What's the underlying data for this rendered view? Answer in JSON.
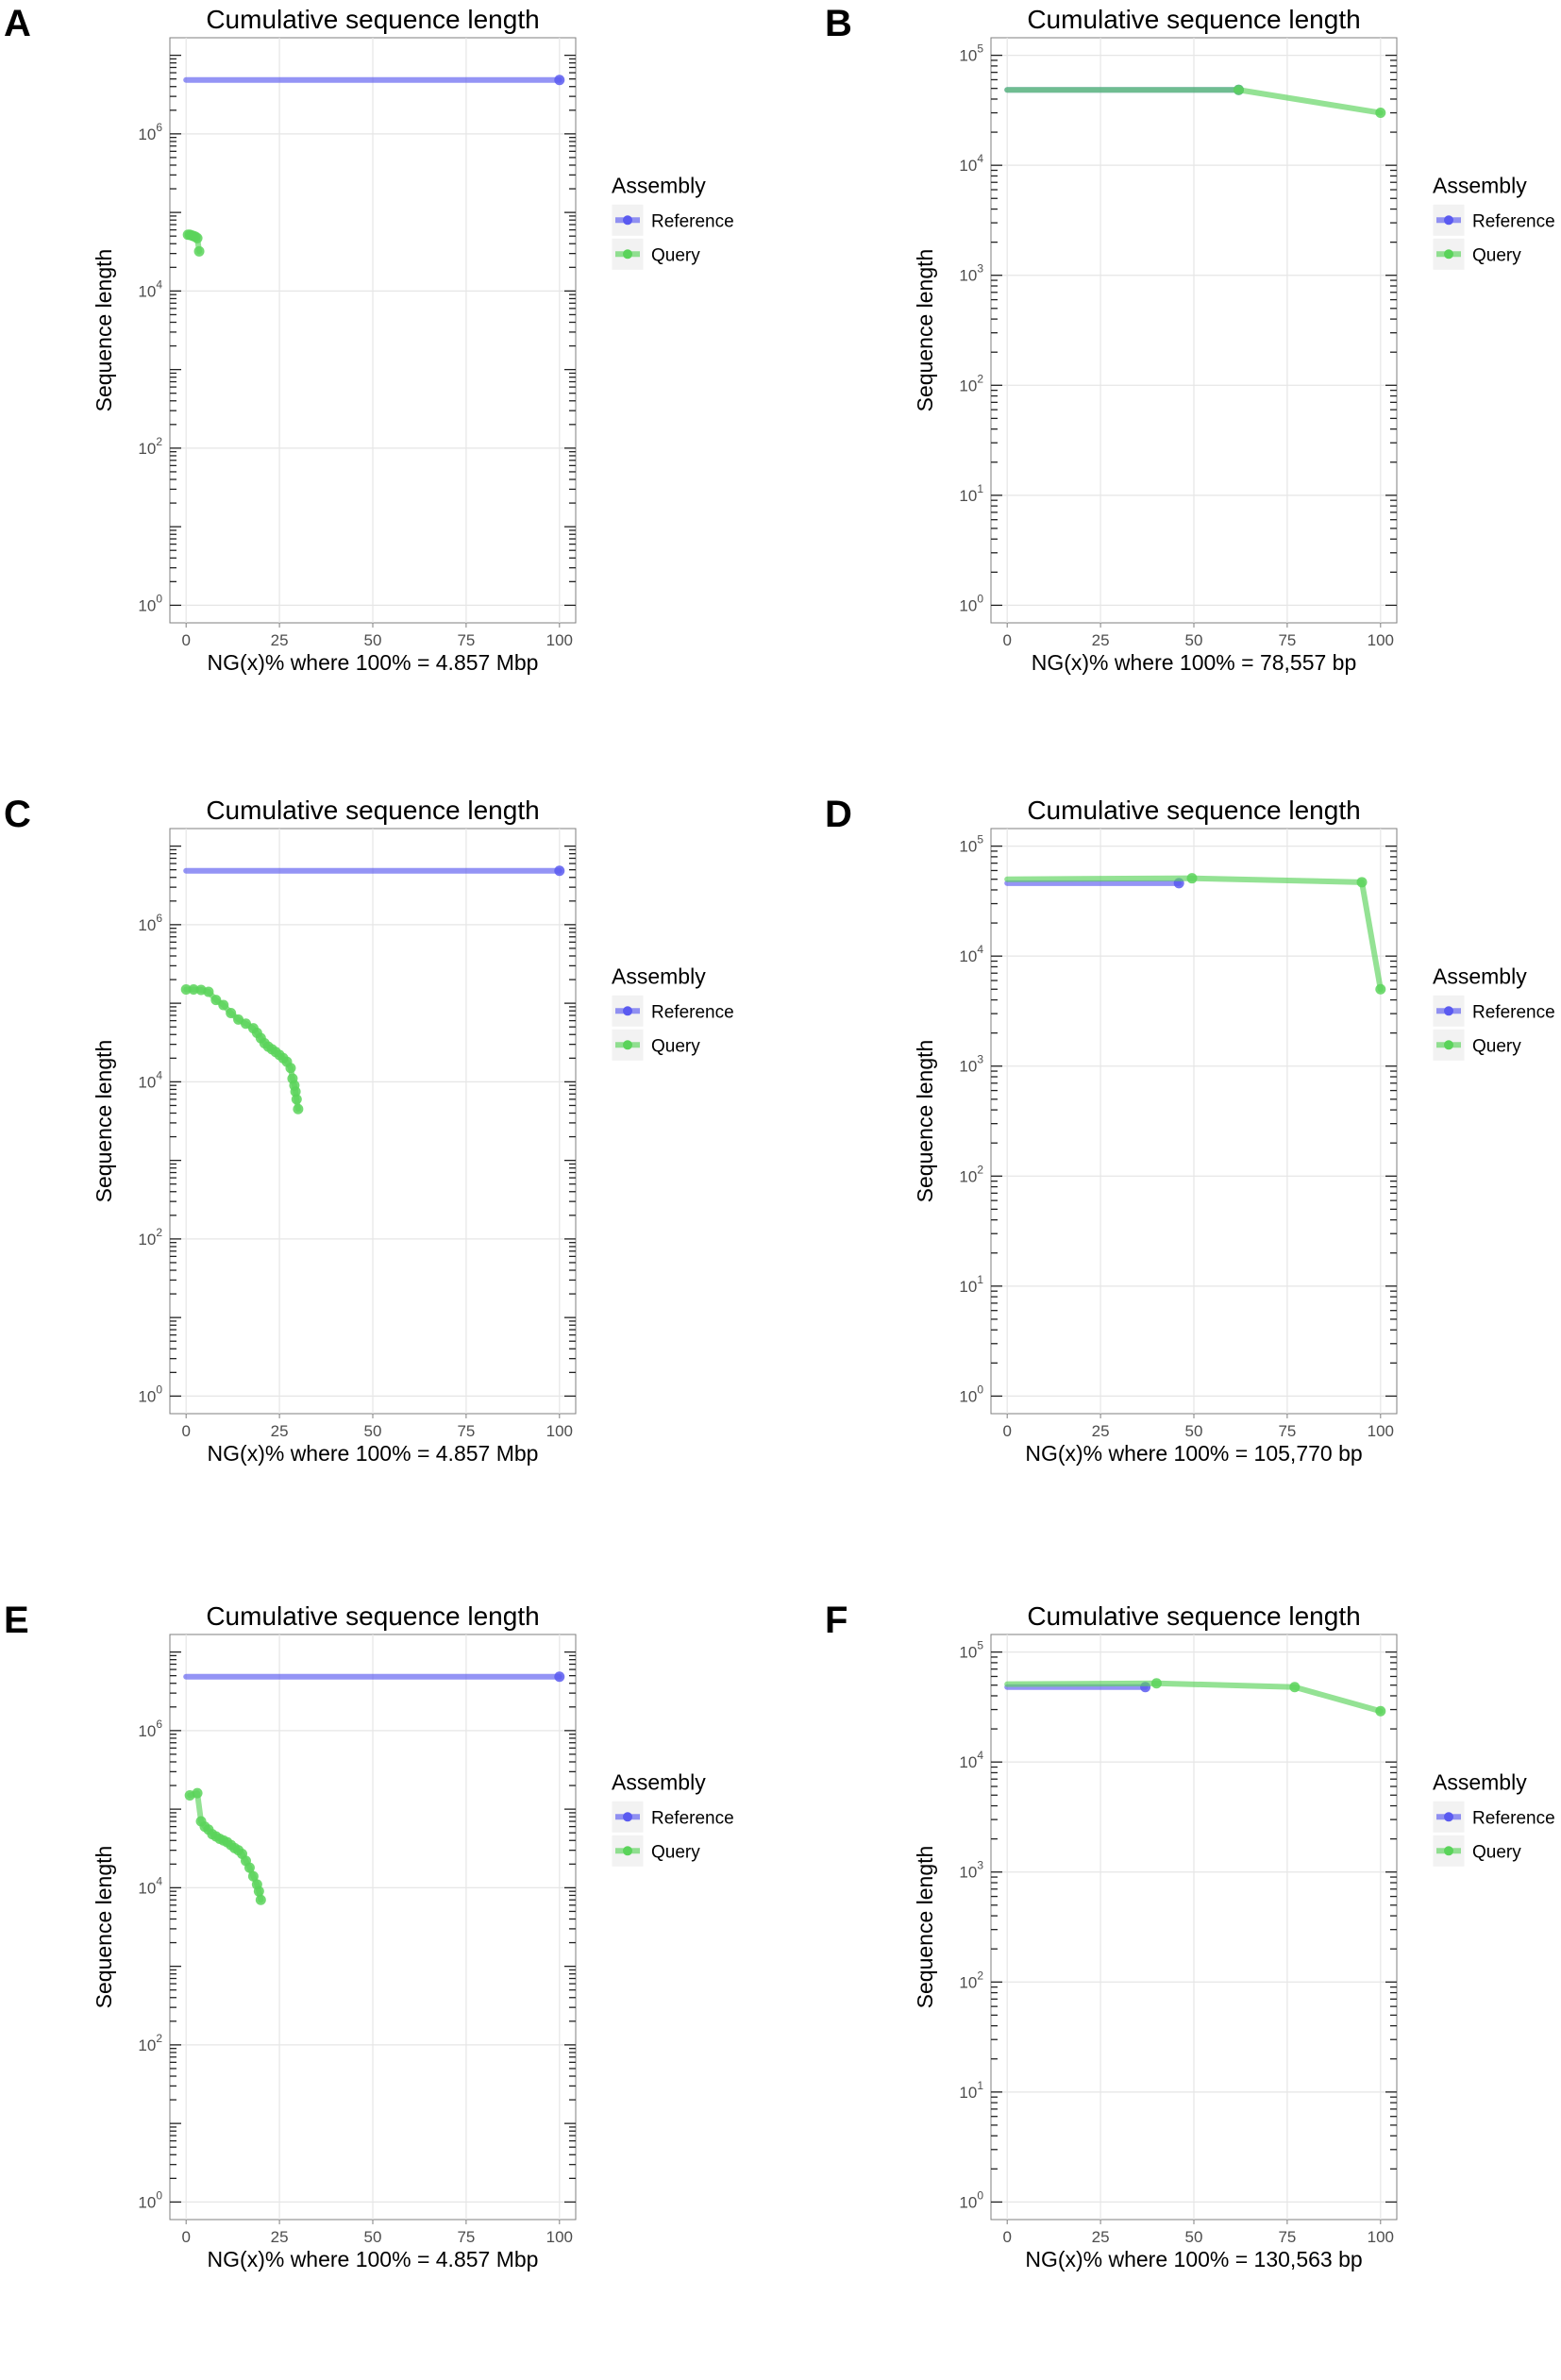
{
  "chart_data": [
    {
      "panel_label": "A",
      "type": "line",
      "title": "Cumulative sequence length",
      "xlabel": "NG(x)% where 100% = 4.857 Mbp",
      "ylabel": "Sequence length",
      "x_scale": "linear",
      "y_scale": "log10",
      "xlim": [
        0,
        100
      ],
      "ylim": [
        1,
        10000000
      ],
      "x_ticks": [
        "0",
        "25",
        "50",
        "75",
        "100"
      ],
      "y_ticks": [
        {
          "base": "10",
          "exp": "0",
          "value": 1
        },
        {
          "base": "10",
          "exp": "2",
          "value": 100
        },
        {
          "base": "10",
          "exp": "4",
          "value": 10000
        },
        {
          "base": "10",
          "exp": "6",
          "value": 1000000
        }
      ],
      "grid": true,
      "legend": {
        "title": "Assembly",
        "position": "right",
        "entries": [
          "Reference",
          "Query"
        ]
      },
      "series": [
        {
          "name": "Reference",
          "color": "#5a5af0",
          "x": [
            0,
            100
          ],
          "y": [
            4857000,
            4857000
          ]
        },
        {
          "name": "Query",
          "color": "#5ad35a",
          "x": [
            0.5,
            1.0,
            1.5,
            2.0,
            2.5,
            3.0,
            3.5
          ],
          "y": [
            52000,
            52000,
            51000,
            50000,
            49000,
            47000,
            32000
          ]
        }
      ]
    },
    {
      "panel_label": "B",
      "type": "line",
      "title": "Cumulative sequence length",
      "xlabel": "NG(x)% where 100% = 78,557 bp",
      "ylabel": "Sequence length",
      "x_scale": "linear",
      "y_scale": "log10",
      "xlim": [
        0,
        100
      ],
      "ylim": [
        1,
        100000
      ],
      "x_ticks": [
        "0",
        "25",
        "50",
        "75",
        "100"
      ],
      "y_ticks": [
        {
          "base": "10",
          "exp": "0",
          "value": 1
        },
        {
          "base": "10",
          "exp": "1",
          "value": 10
        },
        {
          "base": "10",
          "exp": "2",
          "value": 100
        },
        {
          "base": "10",
          "exp": "3",
          "value": 1000
        },
        {
          "base": "10",
          "exp": "4",
          "value": 10000
        },
        {
          "base": "10",
          "exp": "5",
          "value": 100000
        }
      ],
      "grid": true,
      "legend": {
        "title": "Assembly",
        "position": "right",
        "entries": [
          "Reference",
          "Query"
        ]
      },
      "series": [
        {
          "name": "Reference",
          "color": "#5a5af0",
          "x": [
            0,
            62
          ],
          "y": [
            48500,
            48500
          ]
        },
        {
          "name": "Query",
          "color": "#5ad35a",
          "x": [
            0,
            62,
            100
          ],
          "y": [
            48500,
            48500,
            30000
          ]
        }
      ]
    },
    {
      "panel_label": "C",
      "type": "line",
      "title": "Cumulative sequence length",
      "xlabel": "NG(x)% where 100% = 4.857 Mbp",
      "ylabel": "Sequence length",
      "x_scale": "linear",
      "y_scale": "log10",
      "xlim": [
        0,
        100
      ],
      "ylim": [
        1,
        10000000
      ],
      "x_ticks": [
        "0",
        "25",
        "50",
        "75",
        "100"
      ],
      "y_ticks": [
        {
          "base": "10",
          "exp": "0",
          "value": 1
        },
        {
          "base": "10",
          "exp": "2",
          "value": 100
        },
        {
          "base": "10",
          "exp": "4",
          "value": 10000
        },
        {
          "base": "10",
          "exp": "6",
          "value": 1000000
        }
      ],
      "grid": true,
      "legend": {
        "title": "Assembly",
        "position": "right",
        "entries": [
          "Reference",
          "Query"
        ]
      },
      "series": [
        {
          "name": "Reference",
          "color": "#5a5af0",
          "x": [
            0,
            100
          ],
          "y": [
            4857000,
            4857000
          ]
        },
        {
          "name": "Query",
          "color": "#5ad35a",
          "x": [
            0,
            2,
            4,
            6,
            8,
            10,
            12,
            14,
            16,
            18,
            19,
            20,
            21,
            22,
            23,
            24,
            25,
            26,
            27,
            28,
            28.5,
            29,
            29.3,
            29.6,
            30
          ],
          "y": [
            150000,
            150000,
            148000,
            140000,
            110000,
            95000,
            75000,
            62000,
            55000,
            48000,
            42000,
            36000,
            31000,
            28000,
            26000,
            24000,
            22000,
            20000,
            18000,
            15000,
            11000,
            9000,
            7500,
            6000,
            4500
          ]
        }
      ]
    },
    {
      "panel_label": "D",
      "type": "line",
      "title": "Cumulative sequence length",
      "xlabel": "NG(x)% where 100% = 105,770 bp",
      "ylabel": "Sequence length",
      "x_scale": "linear",
      "y_scale": "log10",
      "xlim": [
        0,
        100
      ],
      "ylim": [
        1,
        100000
      ],
      "x_ticks": [
        "0",
        "25",
        "50",
        "75",
        "100"
      ],
      "y_ticks": [
        {
          "base": "10",
          "exp": "0",
          "value": 1
        },
        {
          "base": "10",
          "exp": "1",
          "value": 10
        },
        {
          "base": "10",
          "exp": "2",
          "value": 100
        },
        {
          "base": "10",
          "exp": "3",
          "value": 1000
        },
        {
          "base": "10",
          "exp": "4",
          "value": 10000
        },
        {
          "base": "10",
          "exp": "5",
          "value": 100000
        }
      ],
      "grid": true,
      "legend": {
        "title": "Assembly",
        "position": "right",
        "entries": [
          "Reference",
          "Query"
        ]
      },
      "series": [
        {
          "name": "Reference",
          "color": "#5a5af0",
          "x": [
            0,
            46
          ],
          "y": [
            46000,
            46000
          ]
        },
        {
          "name": "Query",
          "color": "#5ad35a",
          "x": [
            0,
            49.5,
            95,
            100
          ],
          "y": [
            50000,
            51000,
            47000,
            5000
          ]
        }
      ]
    },
    {
      "panel_label": "E",
      "type": "line",
      "title": "Cumulative sequence length",
      "xlabel": "NG(x)% where 100% = 4.857 Mbp",
      "ylabel": "Sequence length",
      "x_scale": "linear",
      "y_scale": "log10",
      "xlim": [
        0,
        100
      ],
      "ylim": [
        1,
        10000000
      ],
      "x_ticks": [
        "0",
        "25",
        "50",
        "75",
        "100"
      ],
      "y_ticks": [
        {
          "base": "10",
          "exp": "0",
          "value": 1
        },
        {
          "base": "10",
          "exp": "2",
          "value": 100
        },
        {
          "base": "10",
          "exp": "4",
          "value": 10000
        },
        {
          "base": "10",
          "exp": "6",
          "value": 1000000
        }
      ],
      "grid": true,
      "legend": {
        "title": "Assembly",
        "position": "right",
        "entries": [
          "Reference",
          "Query"
        ]
      },
      "series": [
        {
          "name": "Reference",
          "color": "#5a5af0",
          "x": [
            0,
            100
          ],
          "y": [
            4857000,
            4857000
          ]
        },
        {
          "name": "Query",
          "color": "#5ad35a",
          "x": [
            1,
            3,
            4,
            5,
            6,
            7,
            8,
            9,
            10,
            11,
            12,
            13,
            14,
            15,
            16,
            17,
            18,
            19,
            19.5,
            20
          ],
          "y": [
            150000,
            160000,
            70000,
            60000,
            55000,
            48000,
            45000,
            42000,
            40000,
            38000,
            35000,
            32000,
            30000,
            27000,
            22000,
            18000,
            14000,
            11000,
            9000,
            7000
          ]
        }
      ]
    },
    {
      "panel_label": "F",
      "type": "line",
      "title": "Cumulative sequence length",
      "xlabel": "NG(x)% where 100% = 130,563 bp",
      "ylabel": "Sequence length",
      "x_scale": "linear",
      "y_scale": "log10",
      "xlim": [
        0,
        100
      ],
      "ylim": [
        1,
        100000
      ],
      "x_ticks": [
        "0",
        "25",
        "50",
        "75",
        "100"
      ],
      "y_ticks": [
        {
          "base": "10",
          "exp": "0",
          "value": 1
        },
        {
          "base": "10",
          "exp": "1",
          "value": 10
        },
        {
          "base": "10",
          "exp": "2",
          "value": 100
        },
        {
          "base": "10",
          "exp": "3",
          "value": 1000
        },
        {
          "base": "10",
          "exp": "4",
          "value": 10000
        },
        {
          "base": "10",
          "exp": "5",
          "value": 100000
        }
      ],
      "grid": true,
      "legend": {
        "title": "Assembly",
        "position": "right",
        "entries": [
          "Reference",
          "Query"
        ]
      },
      "series": [
        {
          "name": "Reference",
          "color": "#5a5af0",
          "x": [
            0,
            37
          ],
          "y": [
            48000,
            48000
          ]
        },
        {
          "name": "Query",
          "color": "#5ad35a",
          "x": [
            0,
            40,
            77,
            100
          ],
          "y": [
            51000,
            52000,
            48000,
            29000
          ]
        }
      ]
    }
  ]
}
